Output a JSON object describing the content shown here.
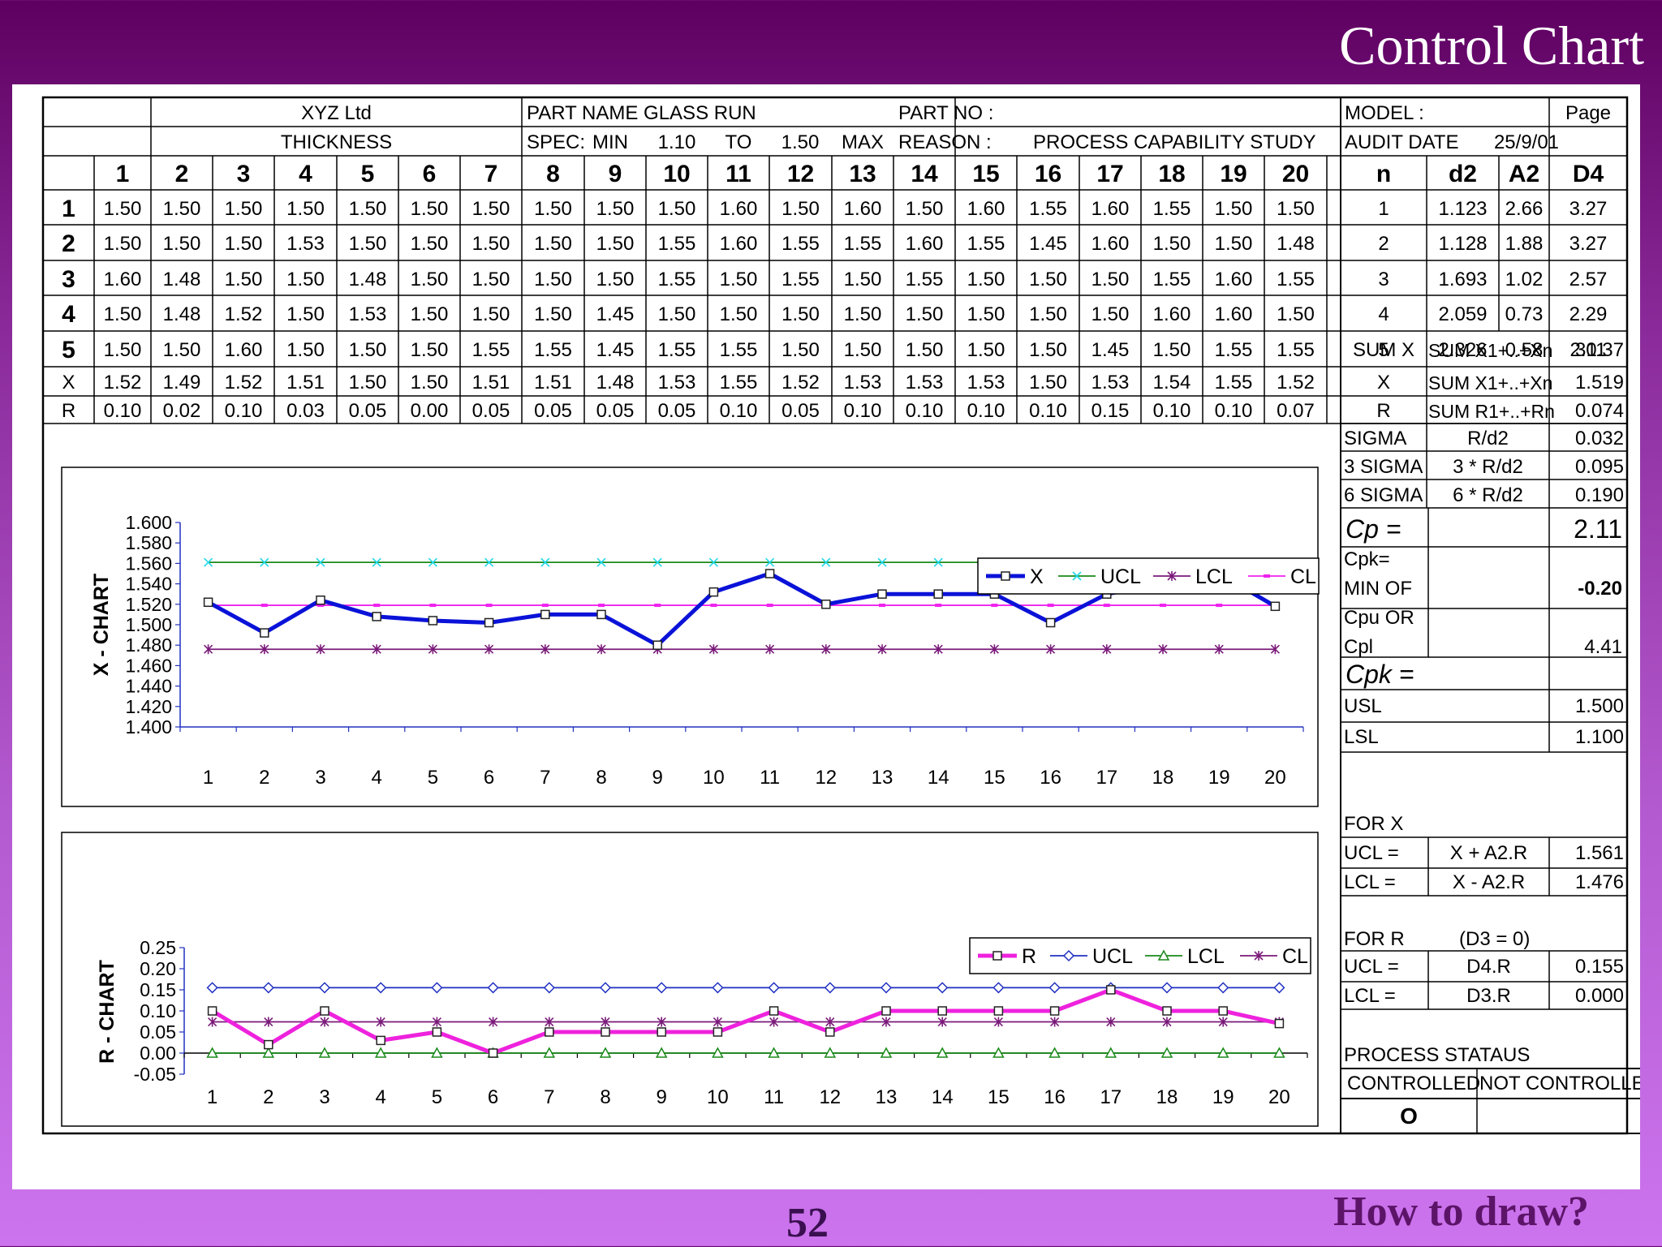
{
  "slide": {
    "title": "Control Chart",
    "page_number": "52",
    "footer_question": "How to draw?"
  },
  "header": {
    "company": "XYZ Ltd",
    "part_name": "PART NAME  GLASS RUN",
    "part_no": "PART NO :",
    "model": "MODEL :",
    "page": "Page",
    "thickness": "THICKNESS",
    "spec": "SPEC:",
    "min_label": "MIN",
    "min_value": "1.10",
    "to_label": "TO",
    "max_value": "1.50",
    "max_label": "MAX",
    "reason_label": "REASON :",
    "reason_value": "PROCESS   CAPABILITY   STUDY",
    "audit_date_label": "AUDIT DATE",
    "audit_date": "25/9/01"
  },
  "measurements": {
    "subgroups": [
      "1",
      "2",
      "3",
      "4",
      "5",
      "6",
      "7",
      "8",
      "9",
      "10",
      "11",
      "12",
      "13",
      "14",
      "15",
      "16",
      "17",
      "18",
      "19",
      "20"
    ],
    "sample_labels": [
      "1",
      "2",
      "3",
      "4",
      "5"
    ],
    "rows": [
      [
        "1.50",
        "1.50",
        "1.50",
        "1.50",
        "1.50",
        "1.50",
        "1.50",
        "1.50",
        "1.50",
        "1.50",
        "1.60",
        "1.50",
        "1.60",
        "1.50",
        "1.60",
        "1.55",
        "1.60",
        "1.55",
        "1.50",
        "1.50"
      ],
      [
        "1.50",
        "1.50",
        "1.50",
        "1.53",
        "1.50",
        "1.50",
        "1.50",
        "1.50",
        "1.50",
        "1.55",
        "1.60",
        "1.55",
        "1.55",
        "1.60",
        "1.55",
        "1.45",
        "1.60",
        "1.50",
        "1.50",
        "1.48"
      ],
      [
        "1.60",
        "1.48",
        "1.50",
        "1.50",
        "1.48",
        "1.50",
        "1.50",
        "1.50",
        "1.50",
        "1.55",
        "1.50",
        "1.55",
        "1.50",
        "1.55",
        "1.50",
        "1.50",
        "1.50",
        "1.55",
        "1.60",
        "1.55"
      ],
      [
        "1.50",
        "1.48",
        "1.52",
        "1.50",
        "1.53",
        "1.50",
        "1.50",
        "1.50",
        "1.45",
        "1.50",
        "1.50",
        "1.50",
        "1.50",
        "1.50",
        "1.50",
        "1.50",
        "1.50",
        "1.60",
        "1.60",
        "1.50"
      ],
      [
        "1.50",
        "1.50",
        "1.60",
        "1.50",
        "1.50",
        "1.50",
        "1.55",
        "1.55",
        "1.45",
        "1.55",
        "1.55",
        "1.50",
        "1.50",
        "1.50",
        "1.50",
        "1.50",
        "1.45",
        "1.50",
        "1.55",
        "1.55"
      ]
    ],
    "xbar_label": "X",
    "range_label": "R",
    "xbar": [
      "1.52",
      "1.49",
      "1.52",
      "1.51",
      "1.50",
      "1.50",
      "1.51",
      "1.51",
      "1.48",
      "1.53",
      "1.55",
      "1.52",
      "1.53",
      "1.53",
      "1.53",
      "1.50",
      "1.53",
      "1.54",
      "1.55",
      "1.52"
    ],
    "range": [
      "0.10",
      "0.02",
      "0.10",
      "0.03",
      "0.05",
      "0.00",
      "0.05",
      "0.05",
      "0.05",
      "0.05",
      "0.10",
      "0.05",
      "0.10",
      "0.10",
      "0.10",
      "0.10",
      "0.15",
      "0.10",
      "0.10",
      "0.07"
    ]
  },
  "constants": {
    "headers": [
      "n",
      "d2",
      "A2",
      "D4"
    ],
    "rows": [
      [
        "1",
        "1.123",
        "2.66",
        "3.27"
      ],
      [
        "2",
        "1.128",
        "1.88",
        "3.27"
      ],
      [
        "3",
        "1.693",
        "1.02",
        "2.57"
      ],
      [
        "4",
        "2.059",
        "0.73",
        "2.29"
      ],
      [
        "5",
        "2.326",
        "0.58",
        "2.11"
      ]
    ]
  },
  "summary": {
    "sum_x": [
      "SUM X",
      "SUM X1+..+Xn",
      "30.37"
    ],
    "x_bar": [
      "X",
      "SUM X1+..+Xn",
      "1.519"
    ],
    "r_bar": [
      "R",
      "SUM R1+..+Rn",
      "0.074"
    ],
    "sigma": [
      "SIGMA",
      "R/d2",
      "0.032"
    ],
    "sigma3": [
      "3 SIGMA",
      "3 * R/d2",
      "0.095"
    ],
    "sigma6": [
      "6 SIGMA",
      "6 * R/d2",
      "0.190"
    ],
    "cp_label": "Cp =",
    "cp_value": "2.11",
    "cpk_line1": "Cpk=",
    "cpk_line2": "MIN OF",
    "cpk_min_value": "-0.20",
    "cpk_line3": "Cpu OR",
    "cpk_line4": "Cpl",
    "cpk_other_value": "4.41",
    "cpk_label": "Cpk =",
    "usl": [
      "USL",
      "1.500"
    ],
    "lsl": [
      "LSL",
      "1.100"
    ],
    "for_x": "FOR X",
    "x_ucl": [
      "UCL =",
      "X + A2.R",
      "1.561"
    ],
    "x_lcl": [
      "LCL =",
      "X - A2.R",
      "1.476"
    ],
    "for_r": "FOR R",
    "for_r_note": "(D3 = 0)",
    "r_ucl": [
      "UCL =",
      "D4.R",
      "0.155"
    ],
    "r_lcl": [
      "LCL =",
      "D3.R",
      "0.000"
    ],
    "process_status": "PROCESS STATAUS",
    "controlled": "CONTROLLED",
    "not_controlled": "NOT CONTROLLED",
    "status_mark": "O"
  },
  "chart_data": [
    {
      "type": "line",
      "ylabel": "X - CHART",
      "x": [
        1,
        2,
        3,
        4,
        5,
        6,
        7,
        8,
        9,
        10,
        11,
        12,
        13,
        14,
        15,
        16,
        17,
        18,
        19,
        20
      ],
      "ylim": [
        1.4,
        1.6
      ],
      "yticks": [
        "1.600",
        "1.580",
        "1.560",
        "1.540",
        "1.520",
        "1.500",
        "1.480",
        "1.460",
        "1.440",
        "1.420",
        "1.400"
      ],
      "legend_position": "top-right",
      "series": [
        {
          "name": "X",
          "color": "#0a12d8",
          "marker": "square",
          "values": [
            1.522,
            1.492,
            1.524,
            1.508,
            1.504,
            1.502,
            1.51,
            1.51,
            1.48,
            1.532,
            1.55,
            1.52,
            1.53,
            1.53,
            1.53,
            1.502,
            1.53,
            1.54,
            1.55,
            1.518
          ]
        },
        {
          "name": "UCL",
          "color": "#1a8a1a",
          "marker": "x",
          "marker_color": "#20d8e8",
          "values": [
            1.561,
            1.561,
            1.561,
            1.561,
            1.561,
            1.561,
            1.561,
            1.561,
            1.561,
            1.561,
            1.561,
            1.561,
            1.561,
            1.561,
            1.561,
            1.561,
            1.561,
            1.561,
            1.561,
            1.561
          ]
        },
        {
          "name": "LCL",
          "color": "#7a1a7a",
          "marker": "star",
          "values": [
            1.476,
            1.476,
            1.476,
            1.476,
            1.476,
            1.476,
            1.476,
            1.476,
            1.476,
            1.476,
            1.476,
            1.476,
            1.476,
            1.476,
            1.476,
            1.476,
            1.476,
            1.476,
            1.476,
            1.476
          ]
        },
        {
          "name": "CL",
          "color": "#ee22ee",
          "marker": "dash",
          "values": [
            1.519,
            1.519,
            1.519,
            1.519,
            1.519,
            1.519,
            1.519,
            1.519,
            1.519,
            1.519,
            1.519,
            1.519,
            1.519,
            1.519,
            1.519,
            1.519,
            1.519,
            1.519,
            1.519,
            1.519
          ]
        }
      ]
    },
    {
      "type": "line",
      "ylabel": "R - CHART",
      "x": [
        1,
        2,
        3,
        4,
        5,
        6,
        7,
        8,
        9,
        10,
        11,
        12,
        13,
        14,
        15,
        16,
        17,
        18,
        19,
        20
      ],
      "ylim": [
        -0.05,
        0.25
      ],
      "yticks": [
        "0.25",
        "0.20",
        "0.15",
        "0.10",
        "0.05",
        "0.00",
        "-0.05"
      ],
      "legend_position": "top-right",
      "series": [
        {
          "name": "R",
          "color": "#ee22dd",
          "marker": "square",
          "values": [
            0.1,
            0.02,
            0.1,
            0.03,
            0.05,
            0.0,
            0.05,
            0.05,
            0.05,
            0.05,
            0.1,
            0.05,
            0.1,
            0.1,
            0.1,
            0.1,
            0.15,
            0.1,
            0.1,
            0.07
          ]
        },
        {
          "name": "UCL",
          "color": "#2030c0",
          "marker": "diamond",
          "values": [
            0.155,
            0.155,
            0.155,
            0.155,
            0.155,
            0.155,
            0.155,
            0.155,
            0.155,
            0.155,
            0.155,
            0.155,
            0.155,
            0.155,
            0.155,
            0.155,
            0.155,
            0.155,
            0.155,
            0.155
          ]
        },
        {
          "name": "LCL",
          "color": "#1a8a1a",
          "marker": "triangle",
          "values": [
            0.0,
            0.0,
            0.0,
            0.0,
            0.0,
            0.0,
            0.0,
            0.0,
            0.0,
            0.0,
            0.0,
            0.0,
            0.0,
            0.0,
            0.0,
            0.0,
            0.0,
            0.0,
            0.0,
            0.0
          ]
        },
        {
          "name": "CL",
          "color": "#7a1a7a",
          "marker": "star",
          "values": [
            0.074,
            0.074,
            0.074,
            0.074,
            0.074,
            0.074,
            0.074,
            0.074,
            0.074,
            0.074,
            0.074,
            0.074,
            0.074,
            0.074,
            0.074,
            0.074,
            0.074,
            0.074,
            0.074,
            0.074
          ]
        }
      ]
    }
  ]
}
